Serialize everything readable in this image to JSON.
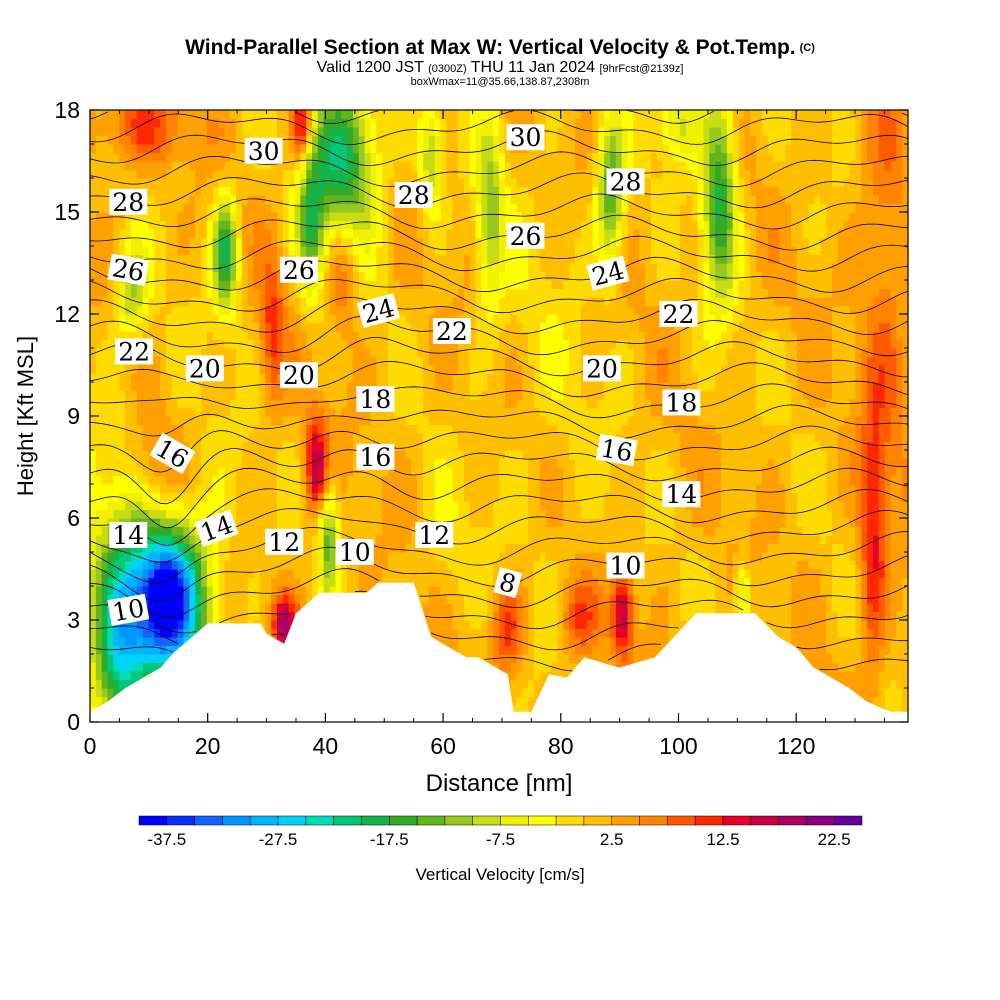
{
  "header": {
    "title": "Wind-Parallel Section at Max W: Vertical Velocity & Pot.Temp.",
    "copyright_mark": "(C)",
    "subtitle_valid": "Valid 1200 JST",
    "subtitle_utc": "(0300Z)",
    "subtitle_date": "THU 11 Jan 2024",
    "subtitle_fcst": "[9hrFcst@2139z]",
    "meta": "boxWmax=11@35.66,138.87,2308m"
  },
  "chart_data": {
    "type": "heatmap",
    "xlabel": "Distance [nm]",
    "ylabel": "Height [Kft MSL]",
    "xlim": [
      0,
      139
    ],
    "ylim": [
      0,
      18
    ],
    "x_ticks": [
      0,
      20,
      40,
      60,
      80,
      100,
      120
    ],
    "y_ticks": [
      0,
      3,
      6,
      9,
      12,
      15,
      18
    ],
    "colorbar": {
      "label": "Vertical Velocity [cm/s]",
      "min": -40,
      "max": 25,
      "step": 2.5,
      "tick_values": [
        -37.5,
        -27.5,
        -17.5,
        -7.5,
        2.5,
        12.5,
        22.5
      ],
      "tick_labels": [
        "-37.5",
        "-27.5",
        "-17.5",
        "-7.5",
        "2.5",
        "12.5",
        "22.5"
      ],
      "colors": [
        "#0000ff",
        "#0a2dff",
        "#1464ff",
        "#0096ff",
        "#00b4ff",
        "#00d2ff",
        "#00dcb4",
        "#00c878",
        "#14b44b",
        "#32aa28",
        "#64b41e",
        "#96c81e",
        "#c8dc14",
        "#f0f000",
        "#ffff00",
        "#ffdc00",
        "#ffbe00",
        "#ffa000",
        "#ff8200",
        "#ff5a00",
        "#ff2800",
        "#e6002d",
        "#c80046",
        "#aa0064",
        "#8c0082",
        "#64009b"
      ]
    },
    "contour_field": "Potential Temperature",
    "theta_levels": [
      4,
      5,
      6,
      7,
      8,
      9,
      10,
      11,
      12,
      13,
      14,
      15,
      16,
      17,
      18,
      19,
      20,
      21,
      22,
      23,
      24,
      25,
      26,
      27,
      28,
      29,
      30,
      31,
      32
    ],
    "theta_labels": [
      {
        "text": "30",
        "x": 29.5,
        "y": 16.8,
        "rot": 0
      },
      {
        "text": "30",
        "x": 74,
        "y": 17.2,
        "rot": 0
      },
      {
        "text": "28",
        "x": 6.5,
        "y": 15.3,
        "rot": 0
      },
      {
        "text": "28",
        "x": 55,
        "y": 15.5,
        "rot": 0
      },
      {
        "text": "28",
        "x": 91,
        "y": 15.9,
        "rot": 0
      },
      {
        "text": "26",
        "x": 6.5,
        "y": 13.3,
        "rot": 10
      },
      {
        "text": "26",
        "x": 35.5,
        "y": 13.3,
        "rot": 0
      },
      {
        "text": "26",
        "x": 74,
        "y": 14.3,
        "rot": 0
      },
      {
        "text": "24",
        "x": 49,
        "y": 12.1,
        "rot": -15
      },
      {
        "text": "24",
        "x": 88,
        "y": 13.2,
        "rot": -15
      },
      {
        "text": "22",
        "x": 7.5,
        "y": 10.9,
        "rot": 0
      },
      {
        "text": "22",
        "x": 61.5,
        "y": 11.5,
        "rot": 0
      },
      {
        "text": "22",
        "x": 100,
        "y": 12.0,
        "rot": 0
      },
      {
        "text": "20",
        "x": 19.5,
        "y": 10.4,
        "rot": 0
      },
      {
        "text": "20",
        "x": 35.5,
        "y": 10.2,
        "rot": 0
      },
      {
        "text": "20",
        "x": 87,
        "y": 10.4,
        "rot": 0
      },
      {
        "text": "18",
        "x": 48.5,
        "y": 9.5,
        "rot": 0
      },
      {
        "text": "18",
        "x": 100.5,
        "y": 9.4,
        "rot": 0
      },
      {
        "text": "16",
        "x": 14,
        "y": 7.9,
        "rot": 30
      },
      {
        "text": "16",
        "x": 48.5,
        "y": 7.8,
        "rot": 0
      },
      {
        "text": "16",
        "x": 89.5,
        "y": 8.0,
        "rot": 10
      },
      {
        "text": "14",
        "x": 6.5,
        "y": 5.5,
        "rot": 0
      },
      {
        "text": "14",
        "x": 21.5,
        "y": 5.7,
        "rot": -20
      },
      {
        "text": "14",
        "x": 100.5,
        "y": 6.7,
        "rot": 0
      },
      {
        "text": "12",
        "x": 33,
        "y": 5.3,
        "rot": 0
      },
      {
        "text": "12",
        "x": 58.5,
        "y": 5.5,
        "rot": 0
      },
      {
        "text": "10",
        "x": 6.5,
        "y": 3.3,
        "rot": -10
      },
      {
        "text": "10",
        "x": 45,
        "y": 5.0,
        "rot": 0
      },
      {
        "text": "10",
        "x": 91,
        "y": 4.6,
        "rot": 0
      },
      {
        "text": "8",
        "x": 71,
        "y": 4.1,
        "rot": 15
      }
    ],
    "terrain": [
      {
        "x": 0,
        "y": 0.3
      },
      {
        "x": 3,
        "y": 0.6
      },
      {
        "x": 6,
        "y": 1.0
      },
      {
        "x": 9,
        "y": 1.3
      },
      {
        "x": 12,
        "y": 1.6
      },
      {
        "x": 14,
        "y": 2.0
      },
      {
        "x": 16,
        "y": 2.3
      },
      {
        "x": 18,
        "y": 2.6
      },
      {
        "x": 20,
        "y": 2.9
      },
      {
        "x": 29,
        "y": 2.9
      },
      {
        "x": 30,
        "y": 2.6
      },
      {
        "x": 33,
        "y": 2.3
      },
      {
        "x": 35,
        "y": 3.2
      },
      {
        "x": 39,
        "y": 3.8
      },
      {
        "x": 47,
        "y": 3.8
      },
      {
        "x": 49,
        "y": 4.1
      },
      {
        "x": 55,
        "y": 4.1
      },
      {
        "x": 58,
        "y": 2.5
      },
      {
        "x": 61,
        "y": 2.2
      },
      {
        "x": 64,
        "y": 1.9
      },
      {
        "x": 66,
        "y": 1.9
      },
      {
        "x": 71,
        "y": 1.4
      },
      {
        "x": 72,
        "y": 0.3
      },
      {
        "x": 75,
        "y": 0.3
      },
      {
        "x": 78,
        "y": 1.4
      },
      {
        "x": 81,
        "y": 1.3
      },
      {
        "x": 84,
        "y": 1.9
      },
      {
        "x": 90,
        "y": 1.6
      },
      {
        "x": 96,
        "y": 1.9
      },
      {
        "x": 103,
        "y": 3.2
      },
      {
        "x": 113,
        "y": 3.2
      },
      {
        "x": 117,
        "y": 2.5
      },
      {
        "x": 120,
        "y": 2.2
      },
      {
        "x": 123,
        "y": 1.6
      },
      {
        "x": 126,
        "y": 1.3
      },
      {
        "x": 129,
        "y": 1.0
      },
      {
        "x": 132,
        "y": 0.6
      },
      {
        "x": 136,
        "y": 0.3
      },
      {
        "x": 139,
        "y": 0.3
      }
    ],
    "w_features": [
      {
        "x": 13,
        "y": 3.5,
        "sx": 4,
        "sy": 1.4,
        "amp": -35
      },
      {
        "x": 10,
        "y": 4.5,
        "sx": 8,
        "sy": 3.0,
        "amp": -12
      },
      {
        "x": 5,
        "y": 2.0,
        "sx": 3,
        "sy": 2.0,
        "amp": -20
      },
      {
        "x": 11,
        "y": 7.3,
        "sx": 4,
        "sy": 1.3,
        "amp": 10
      },
      {
        "x": 38.5,
        "y": 7.5,
        "sx": 1.4,
        "sy": 1.0,
        "amp": 16
      },
      {
        "x": 33,
        "y": 2.9,
        "sx": 1.5,
        "sy": 0.6,
        "amp": 16
      },
      {
        "x": 31,
        "y": 11.5,
        "sx": 1.5,
        "sy": 1.6,
        "amp": 9
      },
      {
        "x": 43,
        "y": 13.5,
        "sx": 2.0,
        "sy": 1.3,
        "amp": 9
      },
      {
        "x": 36,
        "y": 17.6,
        "sx": 1.2,
        "sy": 0.8,
        "amp": 16
      },
      {
        "x": 8,
        "y": 17.5,
        "sx": 6,
        "sy": 0.8,
        "amp": 8
      },
      {
        "x": 90.5,
        "y": 3.2,
        "sx": 1.3,
        "sy": 0.9,
        "amp": 16
      },
      {
        "x": 71,
        "y": 2.8,
        "sx": 2.0,
        "sy": 1.0,
        "amp": 10
      },
      {
        "x": 83,
        "y": 3.0,
        "sx": 2.5,
        "sy": 0.8,
        "amp": 8
      },
      {
        "x": 133,
        "y": 5.0,
        "sx": 1.5,
        "sy": 2.5,
        "amp": 10
      },
      {
        "x": 135,
        "y": 12.0,
        "sx": 3.0,
        "sy": 5.0,
        "amp": 6
      },
      {
        "x": 23,
        "y": 13.8,
        "sx": 1.5,
        "sy": 1.2,
        "amp": -20
      },
      {
        "x": 43,
        "y": 16.5,
        "sx": 4,
        "sy": 1.8,
        "amp": -22
      },
      {
        "x": 37.5,
        "y": 14.5,
        "sx": 1.6,
        "sy": 1.5,
        "amp": -14
      },
      {
        "x": 7,
        "y": 12.7,
        "sx": 2.0,
        "sy": 1.0,
        "amp": -12
      },
      {
        "x": 107,
        "y": 15.5,
        "sx": 2.0,
        "sy": 2.2,
        "amp": -20
      },
      {
        "x": 88.5,
        "y": 15.5,
        "sx": 1.6,
        "sy": 1.5,
        "amp": -17
      },
      {
        "x": 68,
        "y": 15.0,
        "sx": 1.6,
        "sy": 2.0,
        "amp": -12
      },
      {
        "x": 58,
        "y": 16.5,
        "sx": 1.4,
        "sy": 1.2,
        "amp": -12
      },
      {
        "x": 100,
        "y": 17.6,
        "sx": 2.5,
        "sy": 0.8,
        "amp": -10
      },
      {
        "x": 40.5,
        "y": 5.5,
        "sx": 1.2,
        "sy": 1.2,
        "amp": -15
      },
      {
        "x": 111,
        "y": 3.8,
        "sx": 1.0,
        "sy": 0.6,
        "amp": -12
      },
      {
        "x": 60,
        "y": 5.0,
        "sx": 3.0,
        "sy": 1.5,
        "amp": -3
      },
      {
        "x": 77,
        "y": 10.0,
        "sx": 8.0,
        "sy": 6.0,
        "amp": -2
      }
    ]
  }
}
